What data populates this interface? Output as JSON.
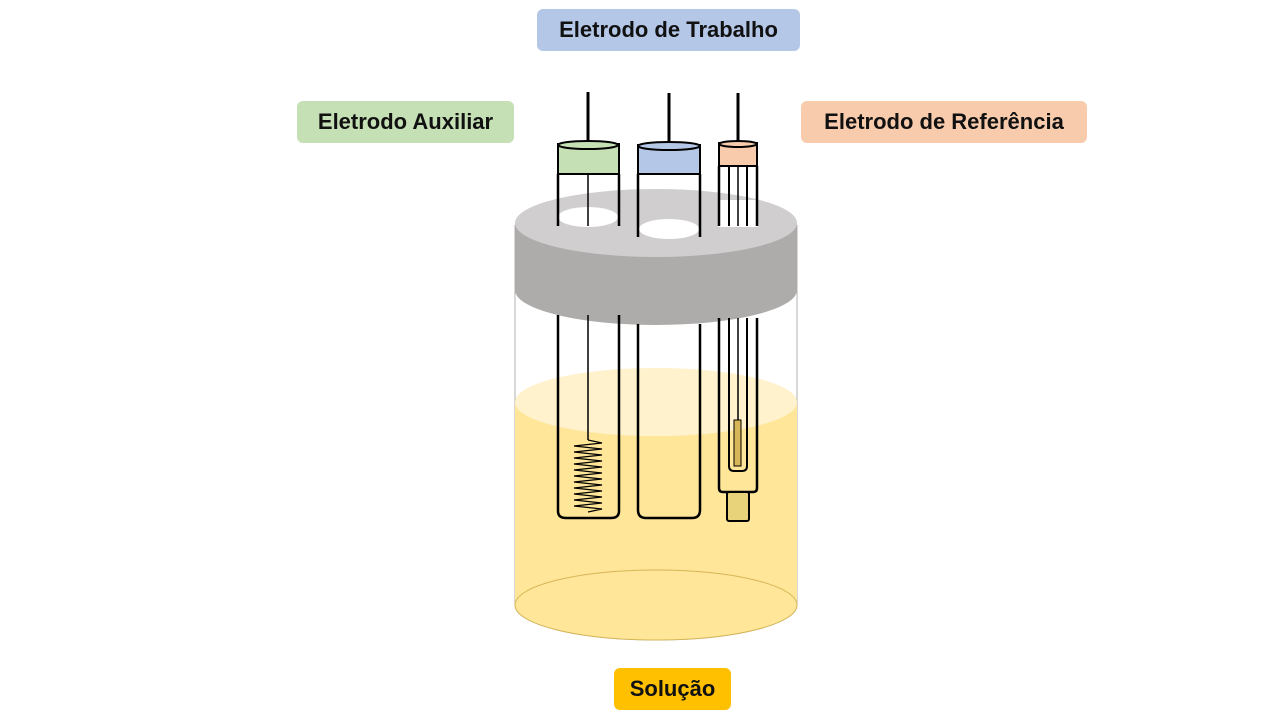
{
  "labels": {
    "working_electrode": "Eletrodo de Trabalho",
    "auxiliary_electrode": "Eletrodo Auxiliar",
    "reference_electrode": "Eletrodo de Referência",
    "solution": "Solução"
  },
  "colors": {
    "working_electrode": "#b4c7e7",
    "auxiliary_electrode": "#c5e0b4",
    "reference_electrode": "#f8cbad",
    "solution": "#ffc000",
    "solution_fill": "#ffe699",
    "lid_top": "#d0cece",
    "lid_side": "#aeabab"
  }
}
